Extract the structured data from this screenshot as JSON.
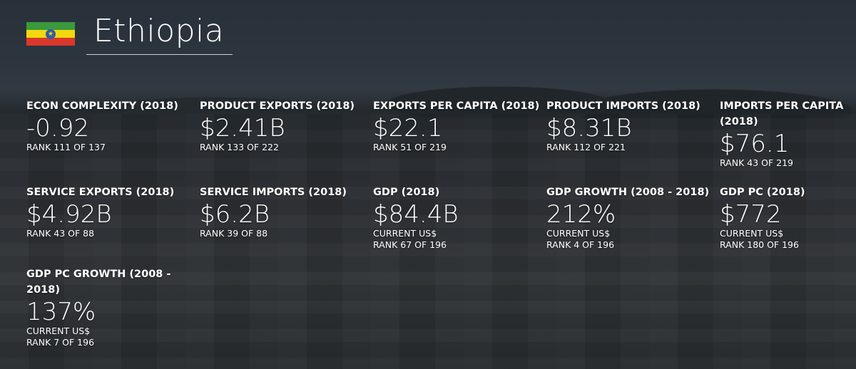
{
  "country": {
    "name": "Ethiopia",
    "flag_colors": [
      "#3a9a3d",
      "#f2d80e",
      "#d9382a"
    ],
    "flag_emblem": "star-emblem-icon"
  },
  "stats": [
    {
      "label": "ECON COMPLEXITY (2018)",
      "value": "-0.92",
      "lines": [
        "RANK 111 OF 137"
      ]
    },
    {
      "label": "PRODUCT EXPORTS (2018)",
      "value": "$2.41B",
      "lines": [
        "RANK 133 OF 222"
      ]
    },
    {
      "label": "EXPORTS PER CAPITA (2018)",
      "value": "$22.1",
      "lines": [
        "RANK 51 OF 219"
      ]
    },
    {
      "label": "PRODUCT IMPORTS (2018)",
      "value": "$8.31B",
      "lines": [
        "RANK 112 OF 221"
      ]
    },
    {
      "label": "IMPORTS PER CAPITA (2018)",
      "value": "$76.1",
      "lines": [
        "RANK 43 OF 219"
      ]
    },
    {
      "label": "SERVICE EXPORTS (2018)",
      "value": "$4.92B",
      "lines": [
        "RANK 43 OF 88"
      ]
    },
    {
      "label": "SERVICE IMPORTS (2018)",
      "value": "$6.2B",
      "lines": [
        "RANK 39 OF 88"
      ]
    },
    {
      "label": "GDP (2018)",
      "value": "$84.4B",
      "lines": [
        "CURRENT US$",
        "RANK 67 OF 196"
      ]
    },
    {
      "label": "GDP GROWTH (2008 - 2018)",
      "value": "212%",
      "lines": [
        "CURRENT US$",
        "RANK 4 OF 196"
      ]
    },
    {
      "label": "GDP PC (2018)",
      "value": "$772",
      "lines": [
        "CURRENT US$",
        "RANK 180 OF 196"
      ]
    },
    {
      "label": "GDP PC GROWTH (2008 - 2018)",
      "value": "137%",
      "lines": [
        "CURRENT US$",
        "RANK 7 OF 196"
      ]
    }
  ]
}
